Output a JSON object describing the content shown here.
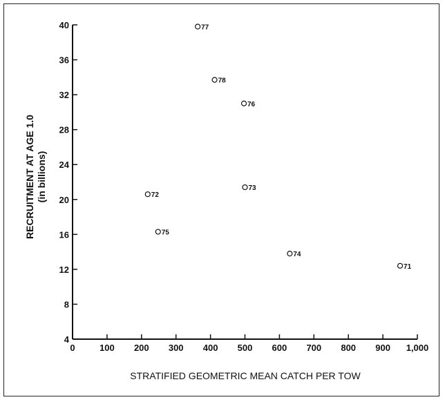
{
  "chart_data": {
    "type": "scatter",
    "xlabel": "STRATIFIED GEOMETRIC MEAN CATCH PER TOW",
    "ylabel": "RECRUITMENT AT AGE 1.0",
    "ylabel_sub": "(in billions)",
    "xlim": [
      0,
      1000
    ],
    "ylim": [
      4,
      40
    ],
    "x_ticks": [
      0,
      100,
      200,
      300,
      400,
      500,
      600,
      700,
      800,
      900,
      1000
    ],
    "x_tick_labels": [
      "0",
      "100",
      "200",
      "300",
      "400",
      "500",
      "600",
      "700",
      "800",
      "900",
      "1,000"
    ],
    "y_ticks": [
      4,
      8,
      12,
      16,
      20,
      24,
      28,
      32,
      36,
      40
    ],
    "y_tick_labels": [
      "4",
      "8",
      "12",
      "16",
      "20",
      "24",
      "28",
      "32",
      "36",
      "40"
    ],
    "grid": false,
    "marker": "open-circle",
    "points": [
      {
        "label": "71",
        "x": 950,
        "y": 12.4
      },
      {
        "label": "72",
        "x": 218,
        "y": 20.6
      },
      {
        "label": "73",
        "x": 500,
        "y": 21.4
      },
      {
        "label": "74",
        "x": 630,
        "y": 13.8
      },
      {
        "label": "75",
        "x": 248,
        "y": 16.3
      },
      {
        "label": "76",
        "x": 497,
        "y": 31.0
      },
      {
        "label": "77",
        "x": 363,
        "y": 39.8
      },
      {
        "label": "78",
        "x": 412,
        "y": 33.7
      }
    ]
  }
}
